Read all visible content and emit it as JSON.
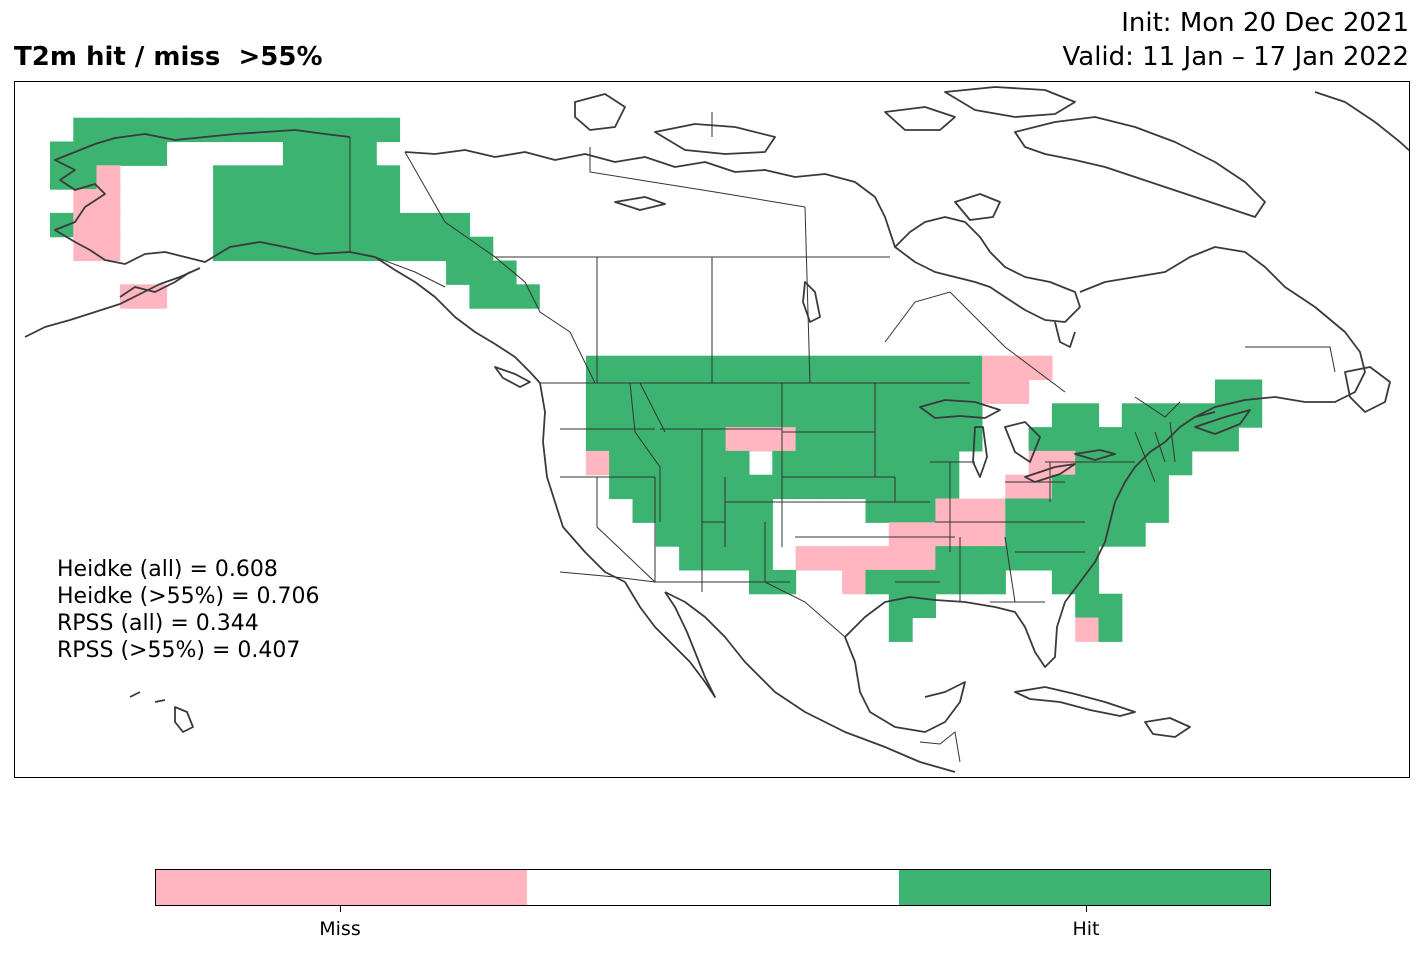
{
  "title": "T2m hit / miss  >55%",
  "init_line": "Init: Mon 20 Dec 2021",
  "valid_line": "Valid: 11 Jan – 17 Jan 2022",
  "scores": [
    "Heidke (all) = 0.608",
    "Heidke (>55%) = 0.706",
    "RPSS (all) = 0.344",
    "RPSS (>55%) = 0.407"
  ],
  "colorbar": {
    "segments": [
      {
        "color": "#FFB6C1",
        "label": "Miss"
      },
      {
        "color": "#FFFFFF",
        "label": ""
      },
      {
        "color": "#3CB371",
        "label": "Hit"
      }
    ]
  },
  "colors": {
    "hit": "#3CB371",
    "miss": "#FFB6C1",
    "coastline": "#3a3a3a",
    "border": "#333333"
  },
  "legend_position": "bottom-center",
  "map_cells": [
    {
      "lon": -168,
      "lat": 68,
      "v": "hit"
    },
    {
      "lon": -166,
      "lat": 68,
      "v": "hit"
    },
    {
      "lon": -164,
      "lat": 68,
      "v": "hit"
    },
    {
      "lon": -162,
      "lat": 68,
      "v": "hit"
    },
    {
      "lon": -160,
      "lat": 68,
      "v": "hit"
    },
    {
      "lon": -158,
      "lat": 68,
      "v": "hit"
    },
    {
      "lon": -156,
      "lat": 68,
      "v": "hit"
    },
    {
      "lon": -154,
      "lat": 68,
      "v": "hit"
    },
    {
      "lon": -152,
      "lat": 68,
      "v": "hit"
    },
    {
      "lon": -150,
      "lat": 68,
      "v": "hit"
    },
    {
      "lon": -148,
      "lat": 68,
      "v": "hit"
    },
    {
      "lon": -146,
      "lat": 68,
      "v": "hit"
    },
    {
      "lon": -144,
      "lat": 68,
      "v": "hit"
    },
    {
      "lon": -142,
      "lat": 68,
      "v": "hit"
    },
    {
      "lon": -170,
      "lat": 66,
      "v": "hit"
    },
    {
      "lon": -168,
      "lat": 66,
      "v": "hit"
    },
    {
      "lon": -166,
      "lat": 66,
      "v": "hit"
    },
    {
      "lon": -164,
      "lat": 66,
      "v": "hit"
    },
    {
      "lon": -162,
      "lat": 66,
      "v": "hit"
    },
    {
      "lon": -150,
      "lat": 66,
      "v": "hit"
    },
    {
      "lon": -148,
      "lat": 66,
      "v": "hit"
    },
    {
      "lon": -146,
      "lat": 66,
      "v": "hit"
    },
    {
      "lon": -144,
      "lat": 66,
      "v": "hit"
    },
    {
      "lon": -170,
      "lat": 64,
      "v": "hit"
    },
    {
      "lon": -168,
      "lat": 64,
      "v": "hit"
    },
    {
      "lon": -166,
      "lat": 64,
      "v": "miss"
    },
    {
      "lon": -156,
      "lat": 64,
      "v": "hit"
    },
    {
      "lon": -154,
      "lat": 64,
      "v": "hit"
    },
    {
      "lon": -152,
      "lat": 64,
      "v": "hit"
    },
    {
      "lon": -150,
      "lat": 64,
      "v": "hit"
    },
    {
      "lon": -148,
      "lat": 64,
      "v": "hit"
    },
    {
      "lon": -146,
      "lat": 64,
      "v": "hit"
    },
    {
      "lon": -144,
      "lat": 64,
      "v": "hit"
    },
    {
      "lon": -142,
      "lat": 64,
      "v": "hit"
    },
    {
      "lon": -168,
      "lat": 62,
      "v": "miss"
    },
    {
      "lon": -166,
      "lat": 62,
      "v": "miss"
    },
    {
      "lon": -156,
      "lat": 62,
      "v": "hit"
    },
    {
      "lon": -154,
      "lat": 62,
      "v": "hit"
    },
    {
      "lon": -152,
      "lat": 62,
      "v": "hit"
    },
    {
      "lon": -150,
      "lat": 62,
      "v": "hit"
    },
    {
      "lon": -148,
      "lat": 62,
      "v": "hit"
    },
    {
      "lon": -146,
      "lat": 62,
      "v": "hit"
    },
    {
      "lon": -144,
      "lat": 62,
      "v": "hit"
    },
    {
      "lon": -142,
      "lat": 62,
      "v": "hit"
    },
    {
      "lon": -170,
      "lat": 60,
      "v": "hit"
    },
    {
      "lon": -168,
      "lat": 60,
      "v": "miss"
    },
    {
      "lon": -166,
      "lat": 60,
      "v": "miss"
    },
    {
      "lon": -156,
      "lat": 60,
      "v": "hit"
    },
    {
      "lon": -154,
      "lat": 60,
      "v": "hit"
    },
    {
      "lon": -152,
      "lat": 60,
      "v": "hit"
    },
    {
      "lon": -150,
      "lat": 60,
      "v": "hit"
    },
    {
      "lon": -148,
      "lat": 60,
      "v": "hit"
    },
    {
      "lon": -146,
      "lat": 60,
      "v": "hit"
    },
    {
      "lon": -144,
      "lat": 60,
      "v": "hit"
    },
    {
      "lon": -142,
      "lat": 60,
      "v": "hit"
    },
    {
      "lon": -168,
      "lat": 58,
      "v": "miss"
    },
    {
      "lon": -166,
      "lat": 58,
      "v": "miss"
    },
    {
      "lon": -156,
      "lat": 58,
      "v": "hit"
    },
    {
      "lon": -154,
      "lat": 58,
      "v": "hit"
    },
    {
      "lon": -152,
      "lat": 58,
      "v": "hit"
    },
    {
      "lon": -150,
      "lat": 58,
      "v": "hit"
    },
    {
      "lon": -148,
      "lat": 58,
      "v": "hit"
    },
    {
      "lon": -146,
      "lat": 58,
      "v": "hit"
    },
    {
      "lon": -144,
      "lat": 58,
      "v": "hit"
    },
    {
      "lon": -142,
      "lat": 58,
      "v": "hit"
    },
    {
      "lon": -140,
      "lat": 60,
      "v": "hit"
    },
    {
      "lon": -138,
      "lat": 60,
      "v": "hit"
    },
    {
      "lon": -136,
      "lat": 60,
      "v": "hit"
    },
    {
      "lon": -140,
      "lat": 58,
      "v": "hit"
    },
    {
      "lon": -138,
      "lat": 58,
      "v": "hit"
    },
    {
      "lon": -136,
      "lat": 58,
      "v": "hit"
    },
    {
      "lon": -134,
      "lat": 58,
      "v": "hit"
    },
    {
      "lon": -136,
      "lat": 56,
      "v": "hit"
    },
    {
      "lon": -134,
      "lat": 56,
      "v": "hit"
    },
    {
      "lon": -132,
      "lat": 56,
      "v": "hit"
    },
    {
      "lon": -134,
      "lat": 54,
      "v": "hit"
    },
    {
      "lon": -132,
      "lat": 54,
      "v": "hit"
    },
    {
      "lon": -130,
      "lat": 54,
      "v": "hit"
    },
    {
      "lon": -164,
      "lat": 54,
      "v": "miss"
    },
    {
      "lon": -162,
      "lat": 54,
      "v": "miss"
    },
    {
      "lon": -124,
      "lat": 48,
      "v": "hit"
    },
    {
      "lon": -122,
      "lat": 48,
      "v": "hit"
    },
    {
      "lon": -120,
      "lat": 48,
      "v": "hit"
    },
    {
      "lon": -118,
      "lat": 48,
      "v": "hit"
    },
    {
      "lon": -116,
      "lat": 48,
      "v": "hit"
    },
    {
      "lon": -114,
      "lat": 48,
      "v": "hit"
    },
    {
      "lon": -112,
      "lat": 48,
      "v": "hit"
    },
    {
      "lon": -110,
      "lat": 48,
      "v": "hit"
    },
    {
      "lon": -108,
      "lat": 48,
      "v": "hit"
    },
    {
      "lon": -106,
      "lat": 48,
      "v": "hit"
    },
    {
      "lon": -104,
      "lat": 48,
      "v": "hit"
    },
    {
      "lon": -102,
      "lat": 48,
      "v": "hit"
    },
    {
      "lon": -100,
      "lat": 48,
      "v": "hit"
    },
    {
      "lon": -98,
      "lat": 48,
      "v": "hit"
    },
    {
      "lon": -96,
      "lat": 48,
      "v": "hit"
    },
    {
      "lon": -94,
      "lat": 48,
      "v": "hit"
    },
    {
      "lon": -92,
      "lat": 48,
      "v": "hit"
    },
    {
      "lon": -90,
      "lat": 48,
      "v": "miss"
    },
    {
      "lon": -88,
      "lat": 48,
      "v": "miss"
    },
    {
      "lon": -86,
      "lat": 48,
      "v": "miss"
    },
    {
      "lon": -124,
      "lat": 46,
      "v": "hit"
    },
    {
      "lon": -122,
      "lat": 46,
      "v": "hit"
    },
    {
      "lon": -120,
      "lat": 46,
      "v": "hit"
    },
    {
      "lon": -118,
      "lat": 46,
      "v": "hit"
    },
    {
      "lon": -116,
      "lat": 46,
      "v": "hit"
    },
    {
      "lon": -114,
      "lat": 46,
      "v": "hit"
    },
    {
      "lon": -112,
      "lat": 46,
      "v": "hit"
    },
    {
      "lon": -110,
      "lat": 46,
      "v": "hit"
    },
    {
      "lon": -108,
      "lat": 46,
      "v": "hit"
    },
    {
      "lon": -106,
      "lat": 46,
      "v": "hit"
    },
    {
      "lon": -104,
      "lat": 46,
      "v": "hit"
    },
    {
      "lon": -102,
      "lat": 46,
      "v": "hit"
    },
    {
      "lon": -100,
      "lat": 46,
      "v": "hit"
    },
    {
      "lon": -98,
      "lat": 46,
      "v": "hit"
    },
    {
      "lon": -96,
      "lat": 46,
      "v": "hit"
    },
    {
      "lon": -94,
      "lat": 46,
      "v": "hit"
    },
    {
      "lon": -92,
      "lat": 46,
      "v": "hit"
    },
    {
      "lon": -90,
      "lat": 46,
      "v": "miss"
    },
    {
      "lon": -88,
      "lat": 46,
      "v": "miss"
    },
    {
      "lon": -124,
      "lat": 44,
      "v": "hit"
    },
    {
      "lon": -122,
      "lat": 44,
      "v": "hit"
    },
    {
      "lon": -120,
      "lat": 44,
      "v": "hit"
    },
    {
      "lon": -118,
      "lat": 44,
      "v": "hit"
    },
    {
      "lon": -116,
      "lat": 44,
      "v": "hit"
    },
    {
      "lon": -114,
      "lat": 44,
      "v": "hit"
    },
    {
      "lon": -112,
      "lat": 44,
      "v": "hit"
    },
    {
      "lon": -110,
      "lat": 44,
      "v": "hit"
    },
    {
      "lon": -108,
      "lat": 44,
      "v": "hit"
    },
    {
      "lon": -106,
      "lat": 44,
      "v": "hit"
    },
    {
      "lon": -104,
      "lat": 44,
      "v": "hit"
    },
    {
      "lon": -102,
      "lat": 44,
      "v": "hit"
    },
    {
      "lon": -100,
      "lat": 44,
      "v": "hit"
    },
    {
      "lon": -98,
      "lat": 44,
      "v": "hit"
    },
    {
      "lon": -96,
      "lat": 44,
      "v": "hit"
    },
    {
      "lon": -94,
      "lat": 44,
      "v": "hit"
    },
    {
      "lon": -92,
      "lat": 44,
      "v": "hit"
    },
    {
      "lon": -84,
      "lat": 44,
      "v": "hit"
    },
    {
      "lon": -82,
      "lat": 44,
      "v": "hit"
    },
    {
      "lon": -78,
      "lat": 44,
      "v": "hit"
    },
    {
      "lon": -76,
      "lat": 44,
      "v": "hit"
    },
    {
      "lon": -74,
      "lat": 44,
      "v": "hit"
    },
    {
      "lon": -72,
      "lat": 44,
      "v": "hit"
    },
    {
      "lon": -70,
      "lat": 44,
      "v": "hit"
    },
    {
      "lon": -68,
      "lat": 44,
      "v": "hit"
    },
    {
      "lon": -70,
      "lat": 46,
      "v": "hit"
    },
    {
      "lon": -68,
      "lat": 46,
      "v": "hit"
    },
    {
      "lon": -124,
      "lat": 42,
      "v": "hit"
    },
    {
      "lon": -122,
      "lat": 42,
      "v": "hit"
    },
    {
      "lon": -120,
      "lat": 42,
      "v": "hit"
    },
    {
      "lon": -118,
      "lat": 42,
      "v": "hit"
    },
    {
      "lon": -116,
      "lat": 42,
      "v": "hit"
    },
    {
      "lon": -114,
      "lat": 42,
      "v": "hit"
    },
    {
      "lon": -112,
      "lat": 42,
      "v": "miss"
    },
    {
      "lon": -110,
      "lat": 42,
      "v": "miss"
    },
    {
      "lon": -108,
      "lat": 42,
      "v": "miss"
    },
    {
      "lon": -106,
      "lat": 42,
      "v": "hit"
    },
    {
      "lon": -104,
      "lat": 42,
      "v": "hit"
    },
    {
      "lon": -102,
      "lat": 42,
      "v": "hit"
    },
    {
      "lon": -100,
      "lat": 42,
      "v": "hit"
    },
    {
      "lon": -98,
      "lat": 42,
      "v": "hit"
    },
    {
      "lon": -96,
      "lat": 42,
      "v": "hit"
    },
    {
      "lon": -94,
      "lat": 42,
      "v": "hit"
    },
    {
      "lon": -92,
      "lat": 42,
      "v": "hit"
    },
    {
      "lon": -86,
      "lat": 42,
      "v": "hit"
    },
    {
      "lon": -84,
      "lat": 42,
      "v": "hit"
    },
    {
      "lon": -82,
      "lat": 42,
      "v": "hit"
    },
    {
      "lon": -80,
      "lat": 42,
      "v": "hit"
    },
    {
      "lon": -78,
      "lat": 42,
      "v": "hit"
    },
    {
      "lon": -76,
      "lat": 42,
      "v": "hit"
    },
    {
      "lon": -74,
      "lat": 42,
      "v": "hit"
    },
    {
      "lon": -72,
      "lat": 42,
      "v": "hit"
    },
    {
      "lon": -70,
      "lat": 42,
      "v": "hit"
    },
    {
      "lon": -124,
      "lat": 40,
      "v": "miss"
    },
    {
      "lon": -122,
      "lat": 40,
      "v": "hit"
    },
    {
      "lon": -120,
      "lat": 40,
      "v": "hit"
    },
    {
      "lon": -118,
      "lat": 40,
      "v": "hit"
    },
    {
      "lon": -116,
      "lat": 40,
      "v": "hit"
    },
    {
      "lon": -114,
      "lat": 40,
      "v": "hit"
    },
    {
      "lon": -112,
      "lat": 40,
      "v": "hit"
    },
    {
      "lon": -108,
      "lat": 40,
      "v": "hit"
    },
    {
      "lon": -106,
      "lat": 40,
      "v": "hit"
    },
    {
      "lon": -104,
      "lat": 40,
      "v": "hit"
    },
    {
      "lon": -102,
      "lat": 40,
      "v": "hit"
    },
    {
      "lon": -100,
      "lat": 40,
      "v": "hit"
    },
    {
      "lon": -98,
      "lat": 40,
      "v": "hit"
    },
    {
      "lon": -96,
      "lat": 40,
      "v": "hit"
    },
    {
      "lon": -94,
      "lat": 40,
      "v": "hit"
    },
    {
      "lon": -86,
      "lat": 40,
      "v": "miss"
    },
    {
      "lon": -84,
      "lat": 40,
      "v": "miss"
    },
    {
      "lon": -82,
      "lat": 40,
      "v": "hit"
    },
    {
      "lon": -80,
      "lat": 40,
      "v": "hit"
    },
    {
      "lon": -78,
      "lat": 40,
      "v": "hit"
    },
    {
      "lon": -76,
      "lat": 40,
      "v": "hit"
    },
    {
      "lon": -74,
      "lat": 40,
      "v": "hit"
    },
    {
      "lon": -122,
      "lat": 38,
      "v": "hit"
    },
    {
      "lon": -120,
      "lat": 38,
      "v": "hit"
    },
    {
      "lon": -118,
      "lat": 38,
      "v": "hit"
    },
    {
      "lon": -116,
      "lat": 38,
      "v": "hit"
    },
    {
      "lon": -114,
      "lat": 38,
      "v": "hit"
    },
    {
      "lon": -112,
      "lat": 38,
      "v": "hit"
    },
    {
      "lon": -110,
      "lat": 38,
      "v": "hit"
    },
    {
      "lon": -108,
      "lat": 38,
      "v": "hit"
    },
    {
      "lon": -106,
      "lat": 38,
      "v": "hit"
    },
    {
      "lon": -104,
      "lat": 38,
      "v": "hit"
    },
    {
      "lon": -102,
      "lat": 38,
      "v": "hit"
    },
    {
      "lon": -100,
      "lat": 38,
      "v": "hit"
    },
    {
      "lon": -98,
      "lat": 38,
      "v": "hit"
    },
    {
      "lon": -96,
      "lat": 38,
      "v": "hit"
    },
    {
      "lon": -94,
      "lat": 38,
      "v": "hit"
    },
    {
      "lon": -88,
      "lat": 38,
      "v": "miss"
    },
    {
      "lon": -86,
      "lat": 38,
      "v": "miss"
    },
    {
      "lon": -84,
      "lat": 38,
      "v": "hit"
    },
    {
      "lon": -82,
      "lat": 38,
      "v": "hit"
    },
    {
      "lon": -80,
      "lat": 38,
      "v": "hit"
    },
    {
      "lon": -78,
      "lat": 38,
      "v": "hit"
    },
    {
      "lon": -76,
      "lat": 38,
      "v": "hit"
    },
    {
      "lon": -120,
      "lat": 36,
      "v": "hit"
    },
    {
      "lon": -118,
      "lat": 36,
      "v": "hit"
    },
    {
      "lon": -116,
      "lat": 36,
      "v": "hit"
    },
    {
      "lon": -114,
      "lat": 36,
      "v": "hit"
    },
    {
      "lon": -112,
      "lat": 36,
      "v": "hit"
    },
    {
      "lon": -110,
      "lat": 36,
      "v": "hit"
    },
    {
      "lon": -100,
      "lat": 36,
      "v": "hit"
    },
    {
      "lon": -98,
      "lat": 36,
      "v": "hit"
    },
    {
      "lon": -96,
      "lat": 36,
      "v": "hit"
    },
    {
      "lon": -94,
      "lat": 36,
      "v": "miss"
    },
    {
      "lon": -92,
      "lat": 36,
      "v": "miss"
    },
    {
      "lon": -90,
      "lat": 36,
      "v": "miss"
    },
    {
      "lon": -88,
      "lat": 36,
      "v": "hit"
    },
    {
      "lon": -86,
      "lat": 36,
      "v": "hit"
    },
    {
      "lon": -84,
      "lat": 36,
      "v": "hit"
    },
    {
      "lon": -82,
      "lat": 36,
      "v": "hit"
    },
    {
      "lon": -80,
      "lat": 36,
      "v": "hit"
    },
    {
      "lon": -78,
      "lat": 36,
      "v": "hit"
    },
    {
      "lon": -76,
      "lat": 36,
      "v": "hit"
    },
    {
      "lon": -118,
      "lat": 34,
      "v": "hit"
    },
    {
      "lon": -116,
      "lat": 34,
      "v": "hit"
    },
    {
      "lon": -114,
      "lat": 34,
      "v": "hit"
    },
    {
      "lon": -112,
      "lat": 34,
      "v": "hit"
    },
    {
      "lon": -110,
      "lat": 34,
      "v": "hit"
    },
    {
      "lon": -98,
      "lat": 34,
      "v": "miss"
    },
    {
      "lon": -96,
      "lat": 34,
      "v": "miss"
    },
    {
      "lon": -94,
      "lat": 34,
      "v": "miss"
    },
    {
      "lon": -92,
      "lat": 34,
      "v": "miss"
    },
    {
      "lon": -90,
      "lat": 34,
      "v": "miss"
    },
    {
      "lon": -88,
      "lat": 34,
      "v": "hit"
    },
    {
      "lon": -86,
      "lat": 34,
      "v": "hit"
    },
    {
      "lon": -84,
      "lat": 34,
      "v": "hit"
    },
    {
      "lon": -82,
      "lat": 34,
      "v": "hit"
    },
    {
      "lon": -80,
      "lat": 34,
      "v": "hit"
    },
    {
      "lon": -78,
      "lat": 34,
      "v": "hit"
    },
    {
      "lon": -116,
      "lat": 32,
      "v": "hit"
    },
    {
      "lon": -114,
      "lat": 32,
      "v": "hit"
    },
    {
      "lon": -112,
      "lat": 32,
      "v": "hit"
    },
    {
      "lon": -110,
      "lat": 32,
      "v": "hit"
    },
    {
      "lon": -106,
      "lat": 32,
      "v": "miss"
    },
    {
      "lon": -104,
      "lat": 32,
      "v": "miss"
    },
    {
      "lon": -102,
      "lat": 32,
      "v": "miss"
    },
    {
      "lon": -100,
      "lat": 32,
      "v": "miss"
    },
    {
      "lon": -98,
      "lat": 32,
      "v": "miss"
    },
    {
      "lon": -96,
      "lat": 32,
      "v": "miss"
    },
    {
      "lon": -94,
      "lat": 32,
      "v": "hit"
    },
    {
      "lon": -92,
      "lat": 32,
      "v": "hit"
    },
    {
      "lon": -90,
      "lat": 32,
      "v": "hit"
    },
    {
      "lon": -88,
      "lat": 32,
      "v": "hit"
    },
    {
      "lon": -86,
      "lat": 32,
      "v": "hit"
    },
    {
      "lon": -84,
      "lat": 32,
      "v": "hit"
    },
    {
      "lon": -82,
      "lat": 32,
      "v": "hit"
    },
    {
      "lon": -110,
      "lat": 30,
      "v": "hit"
    },
    {
      "lon": -108,
      "lat": 30,
      "v": "hit"
    },
    {
      "lon": -102,
      "lat": 30,
      "v": "miss"
    },
    {
      "lon": -100,
      "lat": 30,
      "v": "hit"
    },
    {
      "lon": -98,
      "lat": 30,
      "v": "hit"
    },
    {
      "lon": -96,
      "lat": 30,
      "v": "hit"
    },
    {
      "lon": -94,
      "lat": 30,
      "v": "hit"
    },
    {
      "lon": -92,
      "lat": 30,
      "v": "hit"
    },
    {
      "lon": -90,
      "lat": 30,
      "v": "hit"
    },
    {
      "lon": -84,
      "lat": 30,
      "v": "hit"
    },
    {
      "lon": -82,
      "lat": 30,
      "v": "hit"
    },
    {
      "lon": -98,
      "lat": 28,
      "v": "hit"
    },
    {
      "lon": -96,
      "lat": 28,
      "v": "hit"
    },
    {
      "lon": -82,
      "lat": 28,
      "v": "hit"
    },
    {
      "lon": -80,
      "lat": 28,
      "v": "hit"
    },
    {
      "lon": -98,
      "lat": 26,
      "v": "hit"
    },
    {
      "lon": -82,
      "lat": 26,
      "v": "miss"
    },
    {
      "lon": -80,
      "lat": 26,
      "v": "hit"
    }
  ]
}
